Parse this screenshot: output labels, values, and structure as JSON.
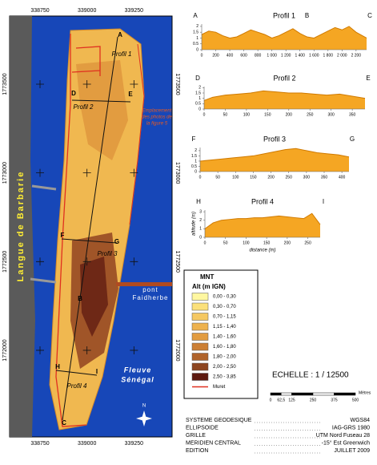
{
  "map": {
    "x_ticks": [
      338750,
      339000,
      339250
    ],
    "y_ticks": [
      1773500,
      1773000,
      1772500,
      1772000
    ],
    "spit": "Langue de Barbarie",
    "photos": [
      "Emplacement",
      "des photos de",
      "la figure 5"
    ],
    "bridge": [
      "pont",
      "Faidherbe"
    ],
    "river": [
      "Fleuve",
      "Sénégal"
    ],
    "north": "N"
  },
  "profiles": [
    {
      "title": "Profil 1",
      "letters": [
        "A",
        "B",
        "C"
      ],
      "xlim": [
        0,
        2350
      ],
      "ylim": [
        0,
        2.2
      ],
      "xticks": [
        0,
        200,
        400,
        600,
        800,
        {
          "value": 1000,
          "label": "1 000"
        },
        {
          "value": 1200,
          "label": "1 200"
        },
        {
          "value": 1400,
          "label": "1 400"
        },
        {
          "value": 1600,
          "label": "1 600"
        },
        {
          "value": 1800,
          "label": "1 800"
        },
        {
          "value": 2000,
          "label": "2 000"
        },
        {
          "value": 2200,
          "label": "2 200"
        }
      ],
      "yticks": [
        0,
        0.5,
        1,
        1.5,
        2
      ],
      "x": [
        0,
        100,
        200,
        300,
        400,
        500,
        600,
        700,
        800,
        900,
        1000,
        1100,
        1200,
        1300,
        1400,
        1500,
        1600,
        1700,
        1800,
        1900,
        2000,
        2100,
        2200,
        2350
      ],
      "values": [
        1.3,
        1.6,
        1.5,
        1.2,
        1.0,
        1.1,
        1.4,
        1.7,
        1.5,
        1.3,
        1.0,
        1.2,
        1.5,
        1.8,
        1.4,
        1.1,
        1.0,
        1.3,
        1.6,
        1.9,
        1.7,
        2.0,
        1.5,
        1.0
      ]
    },
    {
      "title": "Profil 2",
      "letters": [
        "D",
        "E"
      ],
      "xlim": [
        0,
        380
      ],
      "ylim": [
        0,
        2.1
      ],
      "xticks": [
        0,
        50,
        100,
        150,
        200,
        250,
        300,
        350
      ],
      "yticks": [
        0,
        0.5,
        1,
        1.5,
        2
      ],
      "x": [
        0,
        20,
        50,
        80,
        110,
        140,
        170,
        200,
        230,
        260,
        290,
        320,
        350,
        380
      ],
      "values": [
        0.8,
        1.1,
        1.3,
        1.4,
        1.5,
        1.7,
        1.6,
        1.5,
        1.5,
        1.4,
        1.3,
        1.4,
        1.2,
        1.0
      ]
    },
    {
      "title": "Profil 3",
      "letters": [
        "F",
        "G"
      ],
      "xlim": [
        0,
        420
      ],
      "ylim": [
        0,
        2.3
      ],
      "xticks": [
        0,
        50,
        100,
        150,
        200,
        250,
        300,
        350,
        400
      ],
      "yticks": [
        0,
        0.5,
        1,
        1.5,
        2
      ],
      "x": [
        0,
        30,
        60,
        90,
        120,
        150,
        180,
        210,
        240,
        270,
        300,
        330,
        360,
        390,
        420
      ],
      "values": [
        1.0,
        1.1,
        1.2,
        1.3,
        1.4,
        1.5,
        1.7,
        1.9,
        2.1,
        2.2,
        2.0,
        1.8,
        1.7,
        1.6,
        1.4
      ]
    },
    {
      "title": "Profil 4",
      "letters": [
        "H",
        "I"
      ],
      "xlim": [
        0,
        280
      ],
      "ylim": [
        0,
        3.2
      ],
      "xticks": [
        0,
        50,
        100,
        150,
        200,
        250
      ],
      "yticks": [
        0,
        1,
        2,
        3
      ],
      "xlabel": "distance (m)",
      "ylabel": "altitude (m)",
      "x": [
        0,
        20,
        40,
        60,
        80,
        100,
        120,
        140,
        160,
        180,
        200,
        220,
        240,
        260,
        280
      ],
      "values": [
        1.0,
        1.7,
        2.0,
        2.1,
        2.2,
        2.2,
        2.3,
        2.3,
        2.4,
        2.5,
        2.4,
        2.3,
        2.2,
        2.8,
        1.5
      ]
    }
  ],
  "legend": {
    "title": "MNT",
    "subtitle": "Alt (m IGN)",
    "wall": "Muret",
    "classes": [
      {
        "label": "0,00 - 0,30",
        "color": "#fff7a0"
      },
      {
        "label": "0,30 - 0,70",
        "color": "#fbe07a"
      },
      {
        "label": "0,70 - 1,15",
        "color": "#f5c862"
      },
      {
        "label": "1,15 - 1,40",
        "color": "#eeb24e"
      },
      {
        "label": "1,40 - 1,60",
        "color": "#e29c40"
      },
      {
        "label": "1,60 - 1,80",
        "color": "#cc7f34"
      },
      {
        "label": "1,80 - 2,00",
        "color": "#b0632a"
      },
      {
        "label": "2,00 - 2,50",
        "color": "#8d4520"
      },
      {
        "label": "2,50 - 3,85",
        "color": "#5e1a10"
      }
    ]
  },
  "scale": {
    "text": "ECHELLE : 1 / 12500",
    "ticks": [
      0,
      {
        "value": 62.5,
        "label": "62,5"
      },
      125,
      250,
      375,
      500
    ],
    "unit": "Mètres"
  },
  "metadata": [
    {
      "key": "SYSTEME GEODESIQUE",
      "value": "WGS84"
    },
    {
      "key": "ELLIPSOIDE",
      "value": "IAG-GRS 1980"
    },
    {
      "key": "GRILLE",
      "value": "UTM Nord Fuseau 28"
    },
    {
      "key": "MERIDIEN CENTRAL",
      "value": "-15° Est Greenwich"
    },
    {
      "key": "EDITION",
      "value": "JUILLET 2009"
    }
  ]
}
